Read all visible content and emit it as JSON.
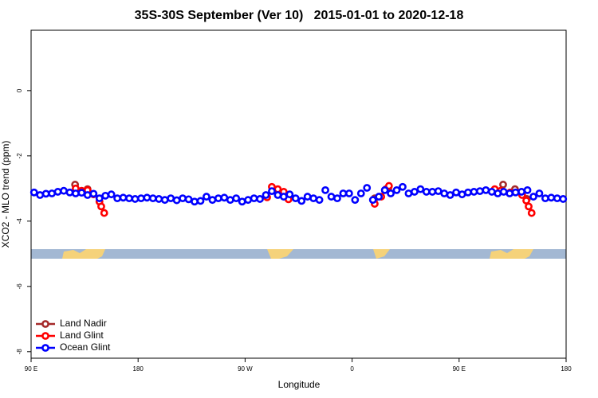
{
  "chart_data": {
    "type": "scatter",
    "title": "35S-30S September (Ver 10)   2015-01-01 to 2020-12-18",
    "xlabel": "Longitude",
    "ylabel": "XCO2 - MLO trend (ppm)",
    "xlim": [
      90,
      540
    ],
    "ylim": [
      -8.2,
      1.85
    ],
    "xticks": [
      {
        "value": 90,
        "label": "90 E"
      },
      180,
      {
        "value": 270,
        "label": "90 W"
      },
      {
        "value": 360,
        "label": "0"
      },
      {
        "value": 450,
        "label": "90 E"
      },
      {
        "value": 540,
        "label": "180"
      }
    ],
    "yticks": [
      0,
      -2,
      -4,
      -6,
      -8
    ],
    "legend": "lower left",
    "series": [
      {
        "name": "Land Nadir",
        "color": "#a52a2a",
        "x": [
          127,
          137.5,
          379,
          390.5,
          487,
          497,
          507
        ],
        "values": [
          -2.88,
          -3.02,
          -3.3,
          -2.98,
          -2.88,
          -3.02,
          -3.32
        ]
      },
      {
        "name": "Land Glint",
        "color": "#ff0000",
        "x": [
          127.5,
          132.5,
          137.5,
          142.5,
          147.5,
          149,
          151.5,
          288.5,
          292.5,
          297.5,
          302.5,
          306.5,
          379,
          384.5,
          388.5,
          391,
          480,
          485,
          493,
          503,
          506.5,
          508.5,
          511
        ],
        "values": [
          -3.0,
          -3.07,
          -3.05,
          -3.18,
          -3.4,
          -3.55,
          -3.75,
          -3.27,
          -2.95,
          -3.02,
          -3.1,
          -3.33,
          -3.47,
          -3.25,
          -3.02,
          -2.92,
          -3.02,
          -3.07,
          -3.12,
          -3.2,
          -3.37,
          -3.55,
          -3.75
        ]
      },
      {
        "name": "Ocean Glint",
        "color": "#0000ff",
        "x": [
          92.5,
          97.5,
          102.5,
          107.5,
          112.5,
          117.5,
          122.5,
          127.5,
          132.5,
          137.5,
          142.5,
          147.5,
          152.5,
          157.5,
          162.5,
          167.5,
          172.5,
          177.5,
          182.5,
          187.5,
          192.5,
          197.5,
          202.5,
          207.5,
          212.5,
          217.5,
          222.5,
          227.5,
          232.5,
          237.5,
          242.5,
          247.5,
          252.5,
          257.5,
          262.5,
          267.5,
          272.5,
          277.5,
          282.5,
          287.5,
          292.5,
          297.5,
          302.5,
          307.5,
          312.5,
          317.5,
          322.5,
          327.5,
          332.5,
          337.5,
          342.5,
          347.5,
          352.5,
          357.5,
          362.5,
          367.5,
          372.5,
          377.5,
          382.5,
          387.5,
          392.5,
          397.5,
          402.5,
          407.5,
          412.5,
          417.5,
          422.5,
          427.5,
          432.5,
          437.5,
          442.5,
          447.5,
          452.5,
          457.5,
          462.5,
          467.5,
          472.5,
          477.5,
          482.5,
          487.5,
          492.5,
          497.5,
          502.5,
          507.5,
          512.5,
          517.5,
          522.5,
          527.5,
          532.5,
          537.5
        ],
        "values": [
          -3.12,
          -3.2,
          -3.16,
          -3.15,
          -3.1,
          -3.07,
          -3.12,
          -3.15,
          -3.13,
          -3.2,
          -3.16,
          -3.3,
          -3.22,
          -3.18,
          -3.3,
          -3.28,
          -3.3,
          -3.32,
          -3.3,
          -3.28,
          -3.3,
          -3.32,
          -3.35,
          -3.3,
          -3.36,
          -3.3,
          -3.33,
          -3.4,
          -3.38,
          -3.25,
          -3.35,
          -3.3,
          -3.28,
          -3.35,
          -3.3,
          -3.4,
          -3.35,
          -3.3,
          -3.32,
          -3.2,
          -3.08,
          -3.2,
          -3.25,
          -3.18,
          -3.3,
          -3.38,
          -3.25,
          -3.3,
          -3.35,
          -3.05,
          -3.25,
          -3.3,
          -3.15,
          -3.15,
          -3.35,
          -3.15,
          -2.98,
          -3.35,
          -3.25,
          -3.05,
          -3.15,
          -3.05,
          -2.95,
          -3.15,
          -3.1,
          -3.02,
          -3.1,
          -3.1,
          -3.08,
          -3.15,
          -3.2,
          -3.12,
          -3.18,
          -3.12,
          -3.1,
          -3.08,
          -3.05,
          -3.1,
          -3.15,
          -3.1,
          -3.15,
          -3.12,
          -3.1,
          -3.05,
          -3.25,
          -3.15,
          -3.3,
          -3.28,
          -3.3,
          -3.32
        ]
      }
    ]
  }
}
